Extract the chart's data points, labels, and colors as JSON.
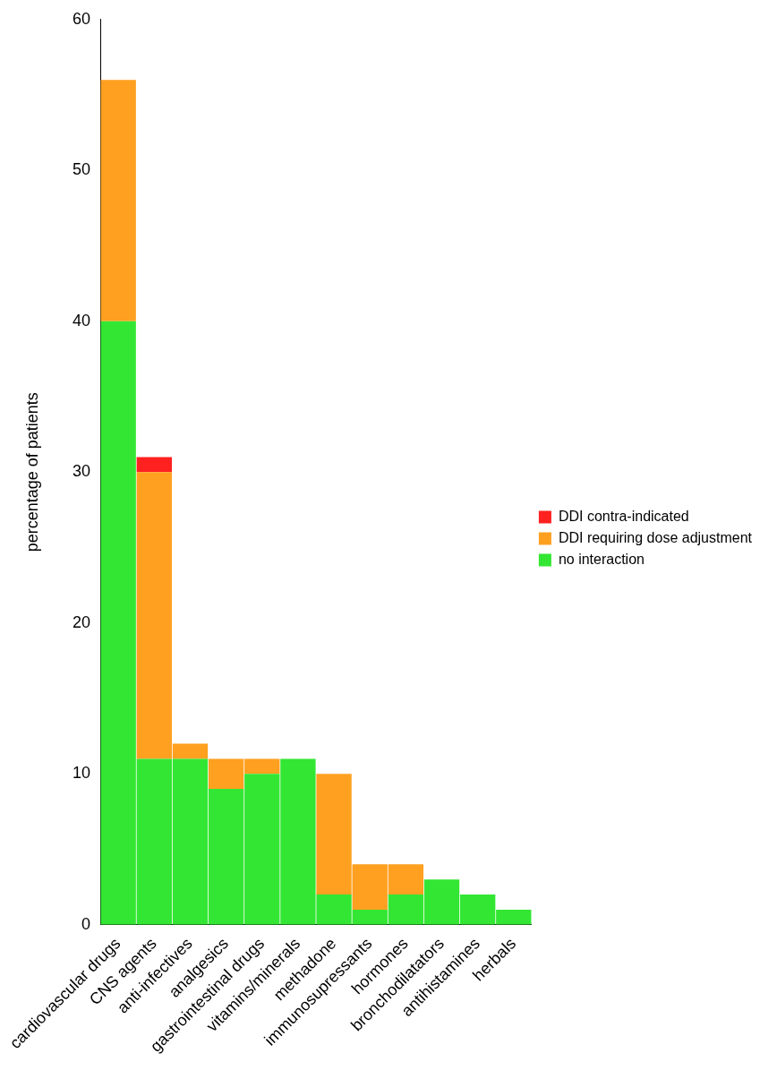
{
  "chart_data": {
    "type": "bar",
    "ylabel": "percentage of patients",
    "categories": [
      "cardiovascular drugs",
      "CNS agents",
      "anti-infectives",
      "analgesics",
      "gastrointestinal drugs",
      "vitamins/minerals",
      "methadone",
      "immunosupressants",
      "hormones",
      "bronchodilatators",
      "antihistamines",
      "herbals"
    ],
    "series": [
      {
        "name": "no interaction",
        "color": "#33e633",
        "values": [
          40,
          11,
          11,
          9,
          10,
          11,
          2,
          1,
          2,
          3,
          2,
          1
        ]
      },
      {
        "name": "DDI requiring dose adjustment",
        "color": "#ffa020",
        "values": [
          16,
          19,
          1,
          2,
          1,
          0,
          8,
          3,
          2,
          0,
          0,
          0
        ]
      },
      {
        "name": "DDI contra-indicated",
        "color": "#ff2020",
        "values": [
          0,
          1,
          0,
          0,
          0,
          0,
          0,
          0,
          0,
          0,
          0,
          0
        ]
      }
    ],
    "stacked": true,
    "ylim": [
      0,
      60
    ],
    "yticks": [
      0,
      10,
      20,
      30,
      40,
      50,
      60
    ],
    "grid": false,
    "legend": "right"
  }
}
